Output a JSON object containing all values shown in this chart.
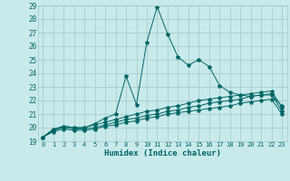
{
  "xlabel": "Humidex (Indice chaleur)",
  "ylabel": "",
  "xlim": [
    -0.5,
    23.5
  ],
  "ylim": [
    19,
    29
  ],
  "xticks": [
    0,
    1,
    2,
    3,
    4,
    5,
    6,
    7,
    8,
    9,
    10,
    11,
    12,
    13,
    14,
    15,
    16,
    17,
    18,
    19,
    20,
    21,
    22,
    23
  ],
  "yticks": [
    19,
    20,
    21,
    22,
    23,
    24,
    25,
    26,
    27,
    28,
    29
  ],
  "bg_color": "#c8eaea",
  "grid_color": "#a0c8c8",
  "line_color": "#006666",
  "line2_x": [
    0,
    1,
    2,
    3,
    4,
    5,
    6,
    7,
    8,
    9,
    10,
    11,
    12,
    13,
    14,
    15,
    16,
    17,
    18,
    19,
    20,
    21,
    22,
    23
  ],
  "line2_y": [
    19.3,
    19.9,
    20.1,
    20.0,
    20.0,
    20.3,
    20.7,
    21.0,
    23.8,
    21.7,
    26.3,
    28.9,
    26.9,
    25.2,
    24.6,
    25.0,
    24.5,
    23.1,
    22.6,
    22.4,
    22.3,
    22.4,
    22.4,
    21.6
  ],
  "line1_x": [
    0,
    1,
    2,
    3,
    4,
    5,
    6,
    7,
    8,
    9,
    10,
    11,
    12,
    13,
    14,
    15,
    16,
    17,
    18,
    19,
    20,
    21,
    22,
    23
  ],
  "line1_y": [
    19.3,
    19.8,
    20.1,
    20.0,
    20.0,
    20.2,
    20.4,
    20.6,
    20.8,
    21.0,
    21.2,
    21.3,
    21.5,
    21.6,
    21.8,
    22.0,
    22.1,
    22.2,
    22.3,
    22.4,
    22.5,
    22.6,
    22.7,
    21.5
  ],
  "line3_x": [
    0,
    1,
    2,
    3,
    4,
    5,
    6,
    7,
    8,
    9,
    10,
    11,
    12,
    13,
    14,
    15,
    16,
    17,
    18,
    19,
    20,
    21,
    22,
    23
  ],
  "line3_y": [
    19.3,
    19.8,
    20.0,
    19.9,
    19.9,
    20.0,
    20.2,
    20.4,
    20.6,
    20.7,
    20.9,
    21.0,
    21.2,
    21.3,
    21.5,
    21.6,
    21.8,
    21.9,
    22.0,
    22.1,
    22.3,
    22.4,
    22.5,
    21.2
  ],
  "line4_x": [
    0,
    1,
    2,
    3,
    4,
    5,
    6,
    7,
    8,
    9,
    10,
    11,
    12,
    13,
    14,
    15,
    16,
    17,
    18,
    19,
    20,
    21,
    22,
    23
  ],
  "line4_y": [
    19.3,
    19.7,
    19.9,
    19.8,
    19.8,
    19.9,
    20.1,
    20.2,
    20.4,
    20.5,
    20.7,
    20.8,
    21.0,
    21.1,
    21.2,
    21.3,
    21.4,
    21.5,
    21.6,
    21.8,
    21.9,
    22.0,
    22.1,
    21.0
  ]
}
